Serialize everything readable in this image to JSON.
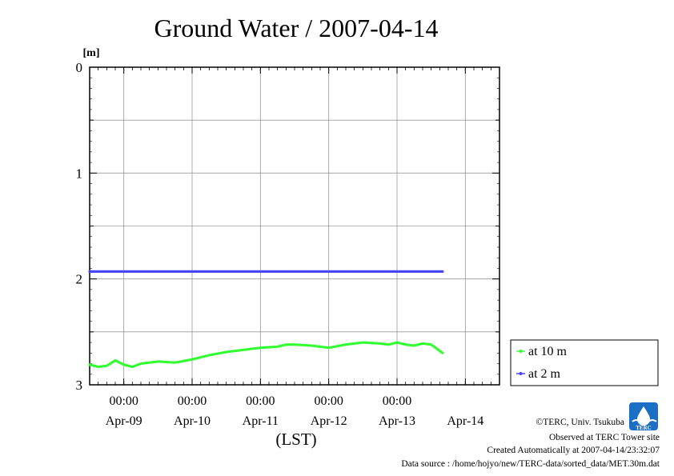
{
  "chart_data": {
    "type": "line",
    "title": "Ground Water / 2007-04-14",
    "yunit": "[m]",
    "ylim": [
      0,
      3
    ],
    "yaxis_inverted": true,
    "yticks": [
      "0",
      "1",
      "2",
      "3"
    ],
    "xlim": [
      "2007-04-08 12:00",
      "2007-04-14 12:00"
    ],
    "x_time_ticks": [
      "00:00",
      "00:00",
      "00:00",
      "00:00",
      "00:00"
    ],
    "x_date_labels": [
      "Apr-09",
      "Apr-10",
      "Apr-11",
      "Apr-12",
      "Apr-13",
      "Apr-14"
    ],
    "xlabel": "(LST)",
    "grid": true,
    "legend_position": "right",
    "series": [
      {
        "name": "at 10 m",
        "color": "#33ff33",
        "x": [
          "2007-04-08 12:00",
          "2007-04-08 15:00",
          "2007-04-08 18:00",
          "2007-04-08 21:00",
          "2007-04-09 00:00",
          "2007-04-09 03:00",
          "2007-04-09 06:00",
          "2007-04-09 09:00",
          "2007-04-09 12:00",
          "2007-04-09 18:00",
          "2007-04-10 00:00",
          "2007-04-10 06:00",
          "2007-04-10 12:00",
          "2007-04-10 18:00",
          "2007-04-11 00:00",
          "2007-04-11 06:00",
          "2007-04-11 09:00",
          "2007-04-11 12:00",
          "2007-04-11 18:00",
          "2007-04-12 00:00",
          "2007-04-12 06:00",
          "2007-04-12 12:00",
          "2007-04-12 18:00",
          "2007-04-12 21:00",
          "2007-04-13 00:00",
          "2007-04-13 03:00",
          "2007-04-13 06:00",
          "2007-04-13 09:00",
          "2007-04-13 12:00",
          "2007-04-13 16:00"
        ],
        "y": [
          2.81,
          2.83,
          2.82,
          2.77,
          2.81,
          2.83,
          2.8,
          2.79,
          2.78,
          2.79,
          2.76,
          2.72,
          2.69,
          2.67,
          2.65,
          2.64,
          2.62,
          2.62,
          2.63,
          2.65,
          2.62,
          2.6,
          2.61,
          2.62,
          2.6,
          2.62,
          2.63,
          2.61,
          2.62,
          2.7
        ]
      },
      {
        "name": "at 2 m",
        "color": "#4444ff",
        "x": [
          "2007-04-08 12:00",
          "2007-04-09 12:00",
          "2007-04-10 12:00",
          "2007-04-11 12:00",
          "2007-04-12 12:00",
          "2007-04-13 16:00"
        ],
        "y": [
          1.93,
          1.93,
          1.93,
          1.93,
          1.93,
          1.93
        ]
      }
    ]
  },
  "footer": {
    "credit": "©TERC, Univ. Tsukuba",
    "site": "Observed at TERC Tower site",
    "created": "Created Automatically at 2007-04-14/23:32:07",
    "source": "Data source : /home/hojyo/new/TERC-data/sorted_data/MET.30m.dat",
    "logo_text": "TERC"
  }
}
